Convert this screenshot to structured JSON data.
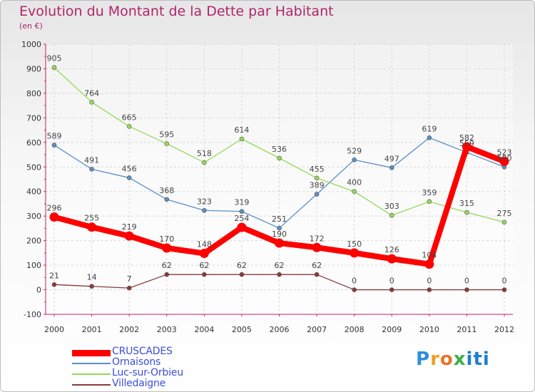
{
  "header": {
    "title": "Evolution du Montant de la Dette par Habitant",
    "subtitle": "(en €)"
  },
  "logo": {
    "text": "Proxiti",
    "colors": [
      "#2f8fd8",
      "#f0a020",
      "#e8742a",
      "#3cae4a",
      "#1f7fd0"
    ]
  },
  "chart_data": {
    "type": "line",
    "title": "Evolution du Montant de la Dette par Habitant",
    "subtitle": "(en €)",
    "xlabel": "",
    "ylabel": "",
    "categories": [
      "2000",
      "2001",
      "2002",
      "2003",
      "2004",
      "2005",
      "2006",
      "2007",
      "2008",
      "2009",
      "2010",
      "2011",
      "2012"
    ],
    "ylim": [
      -100,
      1000
    ],
    "yticks": [
      -100,
      0,
      100,
      200,
      300,
      400,
      500,
      600,
      700,
      800,
      900,
      1000
    ],
    "grid": true,
    "legend_position": "bottom-left",
    "series": [
      {
        "name": "CRUSCADES",
        "color": "#ff0000",
        "values": [
          296,
          255,
          219,
          170,
          148,
          254,
          190,
          172,
          150,
          126,
          104,
          582,
          523
        ],
        "emphasis": true
      },
      {
        "name": "Ornaisons",
        "color": "#5b8fc7",
        "values": [
          589,
          491,
          456,
          368,
          323,
          319,
          251,
          389,
          529,
          497,
          619,
          559,
          500
        ],
        "emphasis": false
      },
      {
        "name": "Luc-sur-Orbieu",
        "color": "#96d95a",
        "values": [
          905,
          764,
          665,
          595,
          518,
          614,
          536,
          455,
          400,
          303,
          359,
          315,
          275
        ],
        "emphasis": false
      },
      {
        "name": "Villedaigne",
        "color": "#8a3a3a",
        "values": [
          21,
          14,
          7,
          62,
          62,
          62,
          62,
          62,
          0,
          0,
          0,
          0,
          0
        ],
        "emphasis": false
      }
    ]
  }
}
